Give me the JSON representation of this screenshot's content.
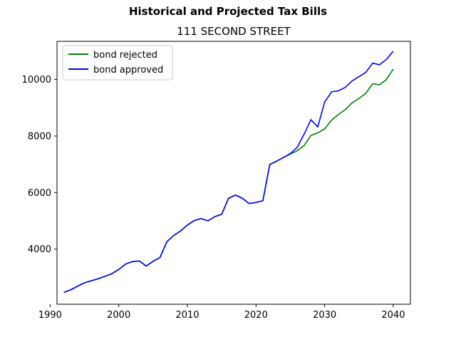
{
  "figure": {
    "suptitle": "Historical and Projected Tax Bills"
  },
  "chart_data": {
    "type": "line",
    "title": "111 SECOND STREET",
    "xlabel": "",
    "ylabel": "",
    "xlim": [
      1991,
      2042.5
    ],
    "ylim": [
      2050,
      11350
    ],
    "x_ticks": [
      1990,
      2000,
      2010,
      2020,
      2030,
      2040
    ],
    "y_ticks": [
      4000,
      6000,
      8000,
      10000
    ],
    "grid": false,
    "legend_position": "upper-left",
    "series": [
      {
        "name": "bond rejected",
        "color": "#008000",
        "points": [
          [
            1992,
            2470
          ],
          [
            1993,
            2560
          ],
          [
            1994,
            2690
          ],
          [
            1995,
            2810
          ],
          [
            1996,
            2880
          ],
          [
            1997,
            2950
          ],
          [
            1998,
            3040
          ],
          [
            1999,
            3130
          ],
          [
            2000,
            3280
          ],
          [
            2001,
            3470
          ],
          [
            2002,
            3560
          ],
          [
            2003,
            3580
          ],
          [
            2004,
            3400
          ],
          [
            2005,
            3570
          ],
          [
            2006,
            3700
          ],
          [
            2007,
            4260
          ],
          [
            2008,
            4480
          ],
          [
            2009,
            4640
          ],
          [
            2010,
            4850
          ],
          [
            2011,
            5010
          ],
          [
            2012,
            5080
          ],
          [
            2013,
            5000
          ],
          [
            2014,
            5150
          ],
          [
            2015,
            5230
          ],
          [
            2016,
            5800
          ],
          [
            2017,
            5910
          ],
          [
            2018,
            5800
          ],
          [
            2019,
            5610
          ],
          [
            2020,
            5650
          ],
          [
            2021,
            5710
          ],
          [
            2022,
            6990
          ],
          [
            2023,
            7110
          ],
          [
            2024,
            7240
          ],
          [
            2025,
            7360
          ],
          [
            2026,
            7480
          ],
          [
            2027,
            7660
          ],
          [
            2028,
            8020
          ],
          [
            2029,
            8110
          ],
          [
            2030,
            8250
          ],
          [
            2031,
            8560
          ],
          [
            2032,
            8760
          ],
          [
            2033,
            8930
          ],
          [
            2034,
            9170
          ],
          [
            2035,
            9330
          ],
          [
            2036,
            9510
          ],
          [
            2037,
            9850
          ],
          [
            2038,
            9810
          ],
          [
            2039,
            10000
          ],
          [
            2040,
            10370
          ]
        ]
      },
      {
        "name": "bond approved",
        "color": "#0000ff",
        "points": [
          [
            1992,
            2470
          ],
          [
            1993,
            2560
          ],
          [
            1994,
            2690
          ],
          [
            1995,
            2810
          ],
          [
            1996,
            2880
          ],
          [
            1997,
            2950
          ],
          [
            1998,
            3040
          ],
          [
            1999,
            3130
          ],
          [
            2000,
            3280
          ],
          [
            2001,
            3470
          ],
          [
            2002,
            3560
          ],
          [
            2003,
            3580
          ],
          [
            2004,
            3400
          ],
          [
            2005,
            3570
          ],
          [
            2006,
            3700
          ],
          [
            2007,
            4260
          ],
          [
            2008,
            4480
          ],
          [
            2009,
            4640
          ],
          [
            2010,
            4850
          ],
          [
            2011,
            5010
          ],
          [
            2012,
            5080
          ],
          [
            2013,
            5000
          ],
          [
            2014,
            5150
          ],
          [
            2015,
            5230
          ],
          [
            2016,
            5800
          ],
          [
            2017,
            5910
          ],
          [
            2018,
            5800
          ],
          [
            2019,
            5610
          ],
          [
            2020,
            5650
          ],
          [
            2021,
            5710
          ],
          [
            2022,
            6990
          ],
          [
            2023,
            7110
          ],
          [
            2024,
            7240
          ],
          [
            2025,
            7380
          ],
          [
            2026,
            7600
          ],
          [
            2027,
            8060
          ],
          [
            2028,
            8580
          ],
          [
            2029,
            8320
          ],
          [
            2030,
            9200
          ],
          [
            2031,
            9560
          ],
          [
            2032,
            9600
          ],
          [
            2033,
            9720
          ],
          [
            2034,
            9950
          ],
          [
            2035,
            10100
          ],
          [
            2036,
            10250
          ],
          [
            2037,
            10580
          ],
          [
            2038,
            10520
          ],
          [
            2039,
            10710
          ],
          [
            2040,
            11000
          ]
        ]
      }
    ]
  }
}
